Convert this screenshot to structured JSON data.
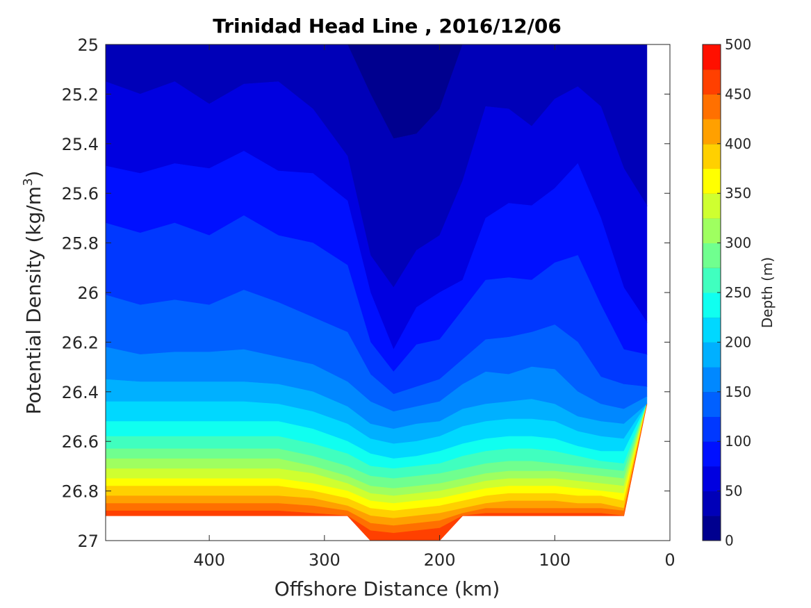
{
  "chart_data": {
    "type": "contour",
    "title": "Trinidad Head Line , 2016/12/06",
    "xlabel": "Offshore Distance (km)",
    "ylabel_main": "Potential Density (kg/m",
    "ylabel_sup": "3",
    "ylabel_close": ")",
    "xlim": [
      490,
      0
    ],
    "ylim": [
      25,
      27
    ],
    "x_ticks": [
      {
        "value": 400,
        "label": "400"
      },
      {
        "value": 300,
        "label": "300"
      },
      {
        "value": 200,
        "label": "200"
      },
      {
        "value": 100,
        "label": "100"
      },
      {
        "value": 0,
        "label": "0"
      }
    ],
    "y_ticks": [
      {
        "value": 25,
        "label": "25"
      },
      {
        "value": 25.2,
        "label": "25.2"
      },
      {
        "value": 25.4,
        "label": "25.4"
      },
      {
        "value": 25.6,
        "label": "25.6"
      },
      {
        "value": 25.8,
        "label": "25.8"
      },
      {
        "value": 26,
        "label": "26"
      },
      {
        "value": 26.2,
        "label": "26.2"
      },
      {
        "value": 26.4,
        "label": "26.4"
      },
      {
        "value": 26.6,
        "label": "26.6"
      },
      {
        "value": 26.8,
        "label": "26.8"
      },
      {
        "value": 27,
        "label": "27"
      }
    ],
    "colorbar": {
      "label": "Depth (m)",
      "min": 0,
      "max": 500,
      "ticks": [
        {
          "value": 0,
          "label": "0"
        },
        {
          "value": 50,
          "label": "50"
        },
        {
          "value": 100,
          "label": "100"
        },
        {
          "value": 150,
          "label": "150"
        },
        {
          "value": 200,
          "label": "200"
        },
        {
          "value": 250,
          "label": "250"
        },
        {
          "value": 300,
          "label": "300"
        },
        {
          "value": 350,
          "label": "350"
        },
        {
          "value": 400,
          "label": "400"
        },
        {
          "value": 450,
          "label": "450"
        },
        {
          "value": 500,
          "label": "500"
        }
      ],
      "levels": [
        0,
        25,
        50,
        75,
        100,
        125,
        150,
        175,
        200,
        225,
        250,
        275,
        300,
        325,
        350,
        375,
        400,
        425,
        450,
        475,
        500
      ],
      "colors": [
        "#00008f",
        "#0000b8",
        "#0000e0",
        "#0010ff",
        "#0038ff",
        "#0060ff",
        "#0088ff",
        "#00b0ff",
        "#00d8ff",
        "#10fff0",
        "#40ffbf",
        "#70ff8f",
        "#9fff60",
        "#cfff30",
        "#ffff00",
        "#ffd000",
        "#ffa000",
        "#ff7000",
        "#ff4000",
        "#ff1000",
        "#d80000"
      ]
    },
    "x_stations": [
      490,
      460,
      430,
      400,
      370,
      340,
      310,
      280,
      260,
      240,
      220,
      200,
      180,
      160,
      140,
      120,
      100,
      80,
      60,
      40,
      20
    ],
    "bottom_density": [
      26.9,
      26.9,
      26.9,
      26.9,
      26.9,
      26.9,
      26.9,
      26.9,
      27.0,
      27.0,
      27.0,
      27.0,
      26.9,
      26.9,
      26.9,
      26.9,
      26.9,
      26.9,
      26.9,
      26.9,
      26.45
    ],
    "contours": [
      {
        "level": 25,
        "density": [
          25.0,
          25.0,
          25.0,
          25.0,
          25.0,
          25.0,
          25.0,
          25.0,
          25.0,
          25.0,
          25.0,
          25.0,
          25.0,
          25.0,
          25.0,
          25.0,
          25.0,
          25.0,
          25.0,
          25.0,
          25.0
        ]
      },
      {
        "level": 50,
        "density": [
          25.0,
          25.0,
          25.0,
          25.0,
          25.0,
          25.0,
          25.0,
          25.0,
          25.2,
          25.38,
          25.36,
          25.26,
          25.0,
          25.0,
          25.0,
          25.0,
          25.0,
          25.0,
          25.0,
          25.0,
          25.0
        ]
      },
      {
        "level": 75,
        "density": [
          25.15,
          25.2,
          25.15,
          25.24,
          25.16,
          25.15,
          25.26,
          25.45,
          25.85,
          25.98,
          25.83,
          25.77,
          25.55,
          25.25,
          25.26,
          25.33,
          25.22,
          25.17,
          25.25,
          25.5,
          25.65
        ]
      },
      {
        "level": 100,
        "density": [
          25.49,
          25.52,
          25.48,
          25.5,
          25.43,
          25.51,
          25.52,
          25.63,
          26.0,
          26.23,
          26.06,
          26.0,
          25.95,
          25.7,
          25.64,
          25.65,
          25.58,
          25.48,
          25.7,
          25.98,
          26.12
        ]
      },
      {
        "level": 125,
        "density": [
          25.72,
          25.76,
          25.72,
          25.77,
          25.69,
          25.77,
          25.8,
          25.89,
          26.2,
          26.32,
          26.21,
          26.19,
          26.07,
          25.95,
          25.94,
          25.95,
          25.88,
          25.85,
          26.05,
          26.23,
          26.25
        ]
      },
      {
        "level": 150,
        "density": [
          26.01,
          26.05,
          26.03,
          26.05,
          25.99,
          26.04,
          26.1,
          26.16,
          26.33,
          26.41,
          26.38,
          26.35,
          26.27,
          26.19,
          26.18,
          26.16,
          26.13,
          26.2,
          26.34,
          26.37,
          26.38
        ]
      },
      {
        "level": 175,
        "density": [
          26.22,
          26.25,
          26.24,
          26.24,
          26.23,
          26.26,
          26.29,
          26.36,
          26.44,
          26.48,
          26.46,
          26.44,
          26.37,
          26.32,
          26.33,
          26.3,
          26.31,
          26.4,
          26.45,
          26.47,
          26.42
        ]
      },
      {
        "level": 200,
        "density": [
          26.35,
          26.36,
          26.36,
          26.36,
          26.36,
          26.37,
          26.4,
          26.46,
          26.53,
          26.55,
          26.53,
          26.52,
          26.47,
          26.45,
          26.44,
          26.43,
          26.45,
          26.5,
          26.52,
          26.53,
          26.45
        ]
      },
      {
        "level": 225,
        "density": [
          26.44,
          26.44,
          26.44,
          26.44,
          26.44,
          26.45,
          26.48,
          26.53,
          26.59,
          26.61,
          26.6,
          26.58,
          26.54,
          26.52,
          26.51,
          26.51,
          26.52,
          26.56,
          26.58,
          26.59,
          26.5
        ]
      },
      {
        "level": 250,
        "density": [
          26.52,
          26.52,
          26.52,
          26.52,
          26.52,
          26.52,
          26.55,
          26.6,
          26.65,
          26.67,
          26.66,
          26.64,
          26.61,
          26.59,
          26.58,
          26.58,
          26.59,
          26.62,
          26.64,
          26.64,
          26.55
        ]
      },
      {
        "level": 275,
        "density": [
          26.58,
          26.58,
          26.58,
          26.58,
          26.58,
          26.58,
          26.61,
          26.65,
          26.7,
          26.71,
          26.7,
          26.69,
          26.66,
          26.64,
          26.63,
          26.63,
          26.64,
          26.66,
          26.68,
          26.69,
          26.6
        ]
      },
      {
        "level": 300,
        "density": [
          26.63,
          26.63,
          26.63,
          26.63,
          26.63,
          26.63,
          26.66,
          26.7,
          26.74,
          26.75,
          26.74,
          26.73,
          26.71,
          26.69,
          26.68,
          26.68,
          26.69,
          26.7,
          26.71,
          26.72,
          26.65
        ]
      },
      {
        "level": 325,
        "density": [
          26.67,
          26.67,
          26.67,
          26.67,
          26.67,
          26.67,
          26.7,
          26.74,
          26.78,
          26.79,
          26.78,
          26.77,
          26.75,
          26.73,
          26.72,
          26.72,
          26.72,
          26.73,
          26.74,
          26.75,
          26.7
        ]
      },
      {
        "level": 350,
        "density": [
          26.71,
          26.71,
          26.71,
          26.71,
          26.71,
          26.71,
          26.73,
          26.77,
          26.81,
          26.82,
          26.81,
          26.8,
          26.78,
          26.76,
          26.75,
          26.75,
          26.75,
          26.76,
          26.77,
          26.78,
          26.74
        ]
      },
      {
        "level": 375,
        "density": [
          26.75,
          26.75,
          26.75,
          26.75,
          26.75,
          26.75,
          26.77,
          26.8,
          26.84,
          26.85,
          26.84,
          26.83,
          26.81,
          26.79,
          26.78,
          26.78,
          26.78,
          26.79,
          26.8,
          26.81,
          26.78
        ]
      },
      {
        "level": 400,
        "density": [
          26.78,
          26.78,
          26.78,
          26.78,
          26.78,
          26.78,
          26.8,
          26.83,
          26.87,
          26.88,
          26.87,
          26.86,
          26.84,
          26.82,
          26.81,
          26.81,
          26.81,
          26.82,
          26.82,
          26.84,
          26.81
        ]
      },
      {
        "level": 425,
        "density": [
          26.82,
          26.82,
          26.82,
          26.82,
          26.82,
          26.82,
          26.83,
          26.86,
          26.9,
          26.91,
          26.9,
          26.89,
          26.87,
          26.85,
          26.84,
          26.84,
          26.84,
          26.85,
          26.85,
          26.87,
          26.84
        ]
      },
      {
        "level": 450,
        "density": [
          26.85,
          26.85,
          26.85,
          26.85,
          26.85,
          26.85,
          26.86,
          26.88,
          26.93,
          26.94,
          26.93,
          26.92,
          26.89,
          26.87,
          26.87,
          26.87,
          26.87,
          26.87,
          26.87,
          26.88,
          26.87
        ]
      },
      {
        "level": 475,
        "density": [
          26.88,
          26.88,
          26.88,
          26.88,
          26.88,
          26.88,
          26.89,
          26.9,
          26.96,
          26.97,
          26.96,
          26.95,
          26.9,
          26.89,
          26.89,
          26.89,
          26.89,
          26.89,
          26.89,
          26.9,
          26.89
        ]
      }
    ]
  }
}
